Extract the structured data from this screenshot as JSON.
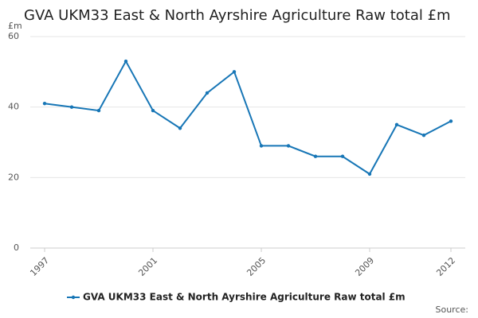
{
  "chart_data": {
    "type": "line",
    "title": "GVA UKM33 East & North Ayrshire Agriculture Raw total £m",
    "y_label": "£m",
    "source": "Source:",
    "x": [
      1997,
      1998,
      1999,
      2000,
      2001,
      2002,
      2003,
      2004,
      2005,
      2006,
      2007,
      2008,
      2009,
      2010,
      2011,
      2012
    ],
    "series": [
      {
        "name": "GVA UKM33 East & North Ayrshire Agriculture Raw total £m",
        "color": "#1776b6",
        "values": [
          41,
          40,
          39,
          53,
          39,
          34,
          44,
          50,
          29,
          29,
          26,
          26,
          21,
          35,
          32,
          36
        ]
      }
    ],
    "xlim": [
      1997,
      2012
    ],
    "xticks": [
      1997,
      2001,
      2005,
      2009,
      2012
    ],
    "ylim": [
      0,
      60
    ],
    "yticks": [
      0,
      20,
      40,
      60
    ],
    "grid": true
  }
}
